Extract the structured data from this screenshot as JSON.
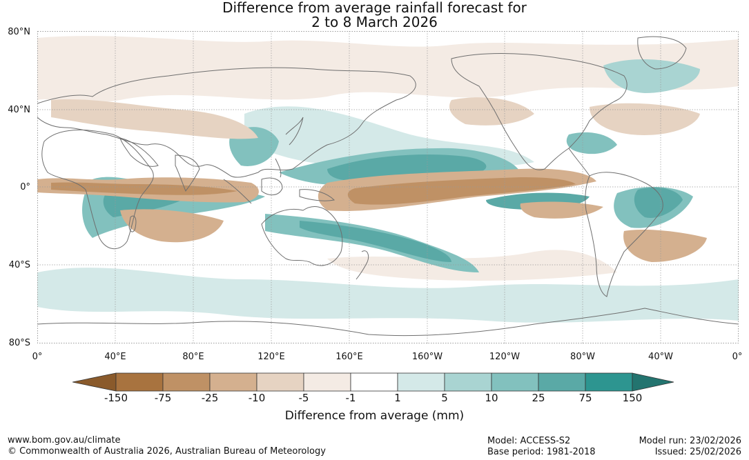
{
  "title_line1": "Difference from average rainfall forecast for",
  "title_line2": "2 to 8 March 2026",
  "lat_labels": [
    "80°N",
    "40°N",
    "0°",
    "40°S",
    "80°S"
  ],
  "lon_labels": [
    "0°",
    "40°E",
    "80°E",
    "120°E",
    "160°E",
    "160°W",
    "120°W",
    "80°W",
    "40°W",
    "0°"
  ],
  "colorbar": {
    "title": "Difference from average (mm)",
    "ticks": [
      "-150",
      "-75",
      "-25",
      "-10",
      "-5",
      "-1",
      "1",
      "5",
      "10",
      "25",
      "75",
      "150"
    ],
    "colors": [
      "#8a5a2b",
      "#a8733f",
      "#bf9165",
      "#d4b08f",
      "#e6d3c2",
      "#f4ebe4",
      "#ffffff",
      "#d4e9e8",
      "#a9d4d2",
      "#82c1be",
      "#5aa9a6",
      "#2d9590",
      "#23746f"
    ]
  },
  "footer": {
    "url": "www.bom.gov.au/climate",
    "copyright": "© Commonwealth of Australia 2026, Australian Bureau of Meteorology",
    "model": "Model: ACCESS-S2",
    "base_period": "Base period: 1981-2018",
    "model_run": "Model run: 23/02/2026",
    "issued": "Issued: 25/02/2026"
  }
}
